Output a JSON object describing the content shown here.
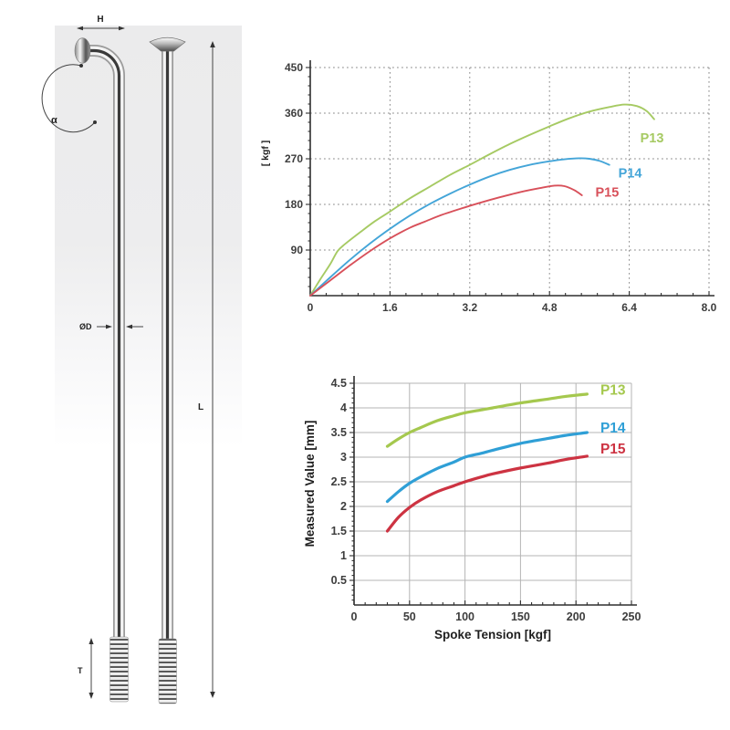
{
  "diagram": {
    "labels": {
      "head_width": "H",
      "bend_angle": "α",
      "diameter": "ØD",
      "length": "L",
      "thread_length": "T"
    }
  },
  "chart_data": [
    {
      "type": "line",
      "title": "",
      "xlabel": "",
      "ylabel": "[ kgf ]",
      "xlim": [
        0,
        8.0
      ],
      "ylim": [
        0,
        450
      ],
      "x_ticks": [
        "0",
        "1.6",
        "3.2",
        "4.8",
        "6.4",
        "8.0"
      ],
      "y_ticks": [
        "90",
        "180",
        "270",
        "360",
        "450"
      ],
      "x_minor_step": 0.32,
      "y_minor_step": 18,
      "grid": "dashed",
      "legend_position": "inline-right",
      "series": [
        {
          "name": "P13",
          "color": "#a6ca63",
          "label_at": [
            6.62,
            302
          ],
          "points": [
            [
              0,
              0
            ],
            [
              0.2,
              32
            ],
            [
              0.4,
              62
            ],
            [
              0.55,
              88
            ],
            [
              0.7,
              102
            ],
            [
              1.0,
              125
            ],
            [
              1.3,
              147
            ],
            [
              1.6,
              166
            ],
            [
              2.0,
              192
            ],
            [
              2.4,
              215
            ],
            [
              2.8,
              238
            ],
            [
              3.2,
              258
            ],
            [
              3.6,
              279
            ],
            [
              4.0,
              299
            ],
            [
              4.4,
              317
            ],
            [
              4.8,
              334
            ],
            [
              5.2,
              350
            ],
            [
              5.6,
              363
            ],
            [
              6.0,
              372
            ],
            [
              6.3,
              377
            ],
            [
              6.55,
              374
            ],
            [
              6.75,
              364
            ],
            [
              6.9,
              348
            ]
          ]
        },
        {
          "name": "P14",
          "color": "#44a5d8",
          "label_at": [
            6.18,
            233
          ],
          "points": [
            [
              0,
              0
            ],
            [
              0.4,
              36
            ],
            [
              0.8,
              71
            ],
            [
              1.2,
              103
            ],
            [
              1.6,
              132
            ],
            [
              2.0,
              158
            ],
            [
              2.4,
              181
            ],
            [
              2.8,
              201
            ],
            [
              3.2,
              219
            ],
            [
              3.6,
              235
            ],
            [
              4.0,
              248
            ],
            [
              4.4,
              258
            ],
            [
              4.8,
              265
            ],
            [
              5.1,
              269
            ],
            [
              5.4,
              271
            ],
            [
              5.6,
              270
            ],
            [
              5.8,
              266
            ],
            [
              6.0,
              258
            ]
          ]
        },
        {
          "name": "P15",
          "color": "#d8505a",
          "label_at": [
            5.72,
            195
          ],
          "points": [
            [
              0,
              0
            ],
            [
              0.4,
              30
            ],
            [
              0.8,
              60
            ],
            [
              1.2,
              88
            ],
            [
              1.6,
              113
            ],
            [
              2.0,
              134
            ],
            [
              2.3,
              146
            ],
            [
              2.6,
              158
            ],
            [
              3.0,
              171
            ],
            [
              3.4,
              183
            ],
            [
              3.8,
              194
            ],
            [
              4.2,
              204
            ],
            [
              4.6,
              212
            ],
            [
              4.9,
              217
            ],
            [
              5.1,
              216
            ],
            [
              5.3,
              208
            ],
            [
              5.45,
              198
            ]
          ]
        }
      ]
    },
    {
      "type": "line",
      "title": "",
      "xlabel": "Spoke Tension [kgf]",
      "ylabel": "Measured Value [mm]",
      "xlim": [
        0,
        250
      ],
      "ylim": [
        0,
        4.5
      ],
      "x_ticks": [
        "0",
        "50",
        "100",
        "150",
        "200",
        "250"
      ],
      "y_ticks": [
        "0.5",
        "1",
        "1.5",
        "2",
        "2.5",
        "3",
        "3.5",
        "4",
        "4.5"
      ],
      "x_minor_step": 10,
      "y_minor_step": 0.1,
      "grid": "solid",
      "legend_position": "inline-right",
      "series": [
        {
          "name": "P13",
          "color": "#a5c84e",
          "label_at": [
            222,
            4.27
          ],
          "points": [
            [
              30,
              3.22
            ],
            [
              40,
              3.37
            ],
            [
              50,
              3.5
            ],
            [
              60,
              3.6
            ],
            [
              75,
              3.74
            ],
            [
              90,
              3.84
            ],
            [
              100,
              3.9
            ],
            [
              115,
              3.96
            ],
            [
              125,
              4.0
            ],
            [
              150,
              4.1
            ],
            [
              175,
              4.18
            ],
            [
              190,
              4.23
            ],
            [
              210,
              4.28
            ]
          ]
        },
        {
          "name": "P14",
          "color": "#2f9fd6",
          "label_at": [
            222,
            3.5
          ],
          "points": [
            [
              30,
              2.1
            ],
            [
              40,
              2.3
            ],
            [
              50,
              2.47
            ],
            [
              60,
              2.6
            ],
            [
              75,
              2.77
            ],
            [
              90,
              2.9
            ],
            [
              100,
              3.0
            ],
            [
              115,
              3.08
            ],
            [
              125,
              3.14
            ],
            [
              150,
              3.28
            ],
            [
              175,
              3.38
            ],
            [
              190,
              3.44
            ],
            [
              210,
              3.5
            ]
          ]
        },
        {
          "name": "P15",
          "color": "#cd3342",
          "label_at": [
            222,
            3.07
          ],
          "points": [
            [
              30,
              1.5
            ],
            [
              40,
              1.78
            ],
            [
              50,
              1.98
            ],
            [
              60,
              2.13
            ],
            [
              75,
              2.3
            ],
            [
              90,
              2.42
            ],
            [
              100,
              2.5
            ],
            [
              115,
              2.6
            ],
            [
              125,
              2.66
            ],
            [
              150,
              2.78
            ],
            [
              175,
              2.88
            ],
            [
              190,
              2.95
            ],
            [
              210,
              3.02
            ]
          ]
        }
      ]
    }
  ]
}
